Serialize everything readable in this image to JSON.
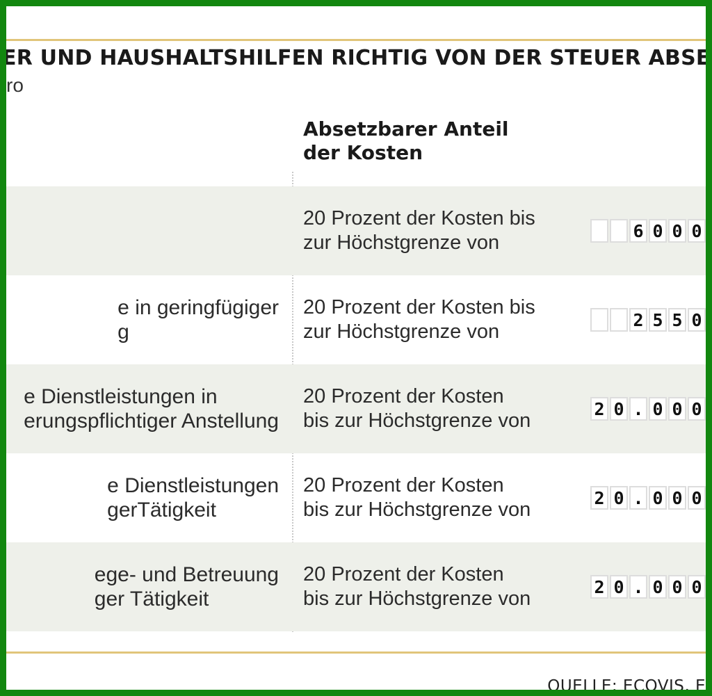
{
  "header": {
    "title": "ER UND HAUSHALTSHILFEN RICHTIG VON DER STEUER ABSE",
    "subtitle": "ro"
  },
  "column_header": "Absetzbarer Anteil der Kosten",
  "rows": [
    {
      "left_l1": "",
      "left_l2": "",
      "text_l1": "20 Prozent der Kosten bis",
      "text_l2": "zur Höchstgrenze von",
      "amount": "6000",
      "digit_boxes": [
        "",
        "",
        "6",
        "0",
        "0",
        "0"
      ]
    },
    {
      "left_l1": "e in geringfügiger",
      "left_l2": "g",
      "text_l1": "20 Prozent der Kosten bis",
      "text_l2": "zur Höchstgrenze von",
      "amount": "2550",
      "digit_boxes": [
        "",
        "",
        "2",
        "5",
        "5",
        "0"
      ]
    },
    {
      "left_l1": "e Dienstleistungen in",
      "left_l2": "erungspflichtiger Anstellung",
      "text_l1": "20 Prozent der Kosten",
      "text_l2": "bis zur Höchstgrenze von",
      "amount": "20.000",
      "digit_boxes": [
        "2",
        "0",
        ".",
        "0",
        "0",
        "0"
      ]
    },
    {
      "left_l1": "e Dienstleistungen",
      "left_l2": "gerTätigkeit",
      "text_l1": "20 Prozent der Kosten",
      "text_l2": "bis zur Höchstgrenze von",
      "amount": "20.000",
      "digit_boxes": [
        "2",
        "0",
        ".",
        "0",
        "0",
        "0"
      ]
    },
    {
      "left_l1": "ege- und Betreuung",
      "left_l2": "ger Tätigkeit",
      "text_l1": "20 Prozent der Kosten",
      "text_l2": "bis zur Höchstgrenze von",
      "amount": "20.000",
      "digit_boxes": [
        "2",
        "0",
        ".",
        "0",
        "0",
        "0"
      ]
    }
  ],
  "footer": {
    "source": "QUELLE: ECOVIS, E"
  },
  "colors": {
    "frame": "#12870f",
    "accent_rule": "#e1c57a",
    "background": "#f7f8f4",
    "row_shade": "#eef0ea"
  }
}
